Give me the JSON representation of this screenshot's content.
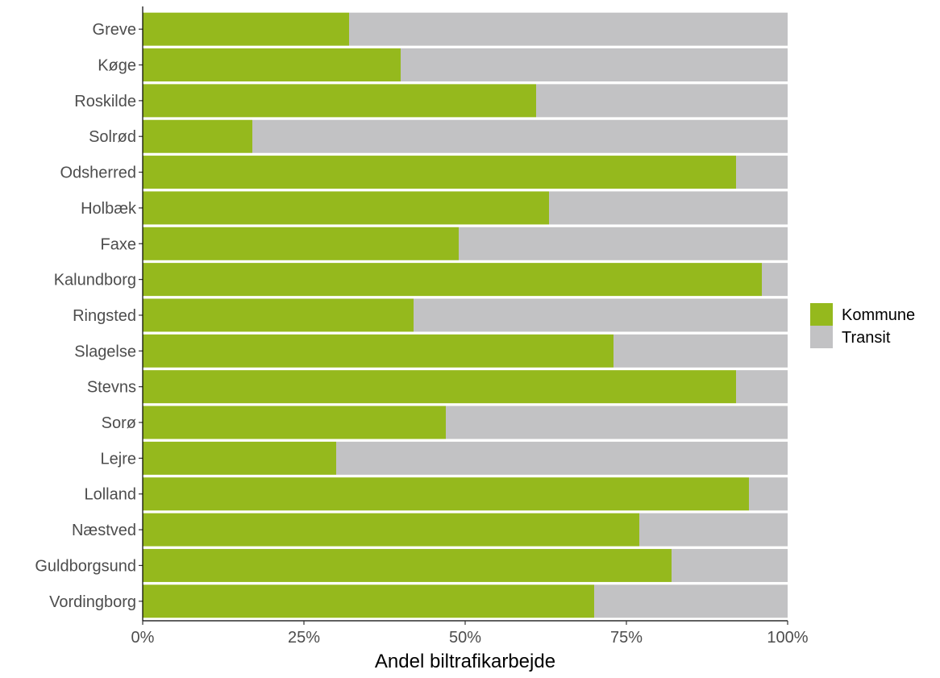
{
  "chart_data": {
    "type": "bar",
    "orientation": "horizontal",
    "stacked": true,
    "title": "",
    "xlabel": "Andel biltrafikarbejde",
    "ylabel": "",
    "xlim": [
      0,
      100
    ],
    "x_ticks": [
      0,
      25,
      50,
      75,
      100
    ],
    "x_tick_labels": [
      "0%",
      "25%",
      "50%",
      "75%",
      "100%"
    ],
    "grid": false,
    "legend_position": "right",
    "categories": [
      "Greve",
      "Køge",
      "Roskilde",
      "Solrød",
      "Odsherred",
      "Holbæk",
      "Faxe",
      "Kalundborg",
      "Ringsted",
      "Slagelse",
      "Stevns",
      "Sorø",
      "Lejre",
      "Lolland",
      "Næstved",
      "Guldborgsund",
      "Vordingborg"
    ],
    "series": [
      {
        "name": "Kommune",
        "color": "#95b91d",
        "values": [
          32,
          40,
          61,
          17,
          92,
          63,
          49,
          96,
          42,
          73,
          92,
          47,
          30,
          94,
          77,
          82,
          70
        ]
      },
      {
        "name": "Transit",
        "color": "#c2c2c4",
        "values": [
          68,
          60,
          39,
          83,
          8,
          37,
          51,
          4,
          58,
          27,
          8,
          53,
          70,
          6,
          23,
          18,
          30
        ]
      }
    ]
  }
}
